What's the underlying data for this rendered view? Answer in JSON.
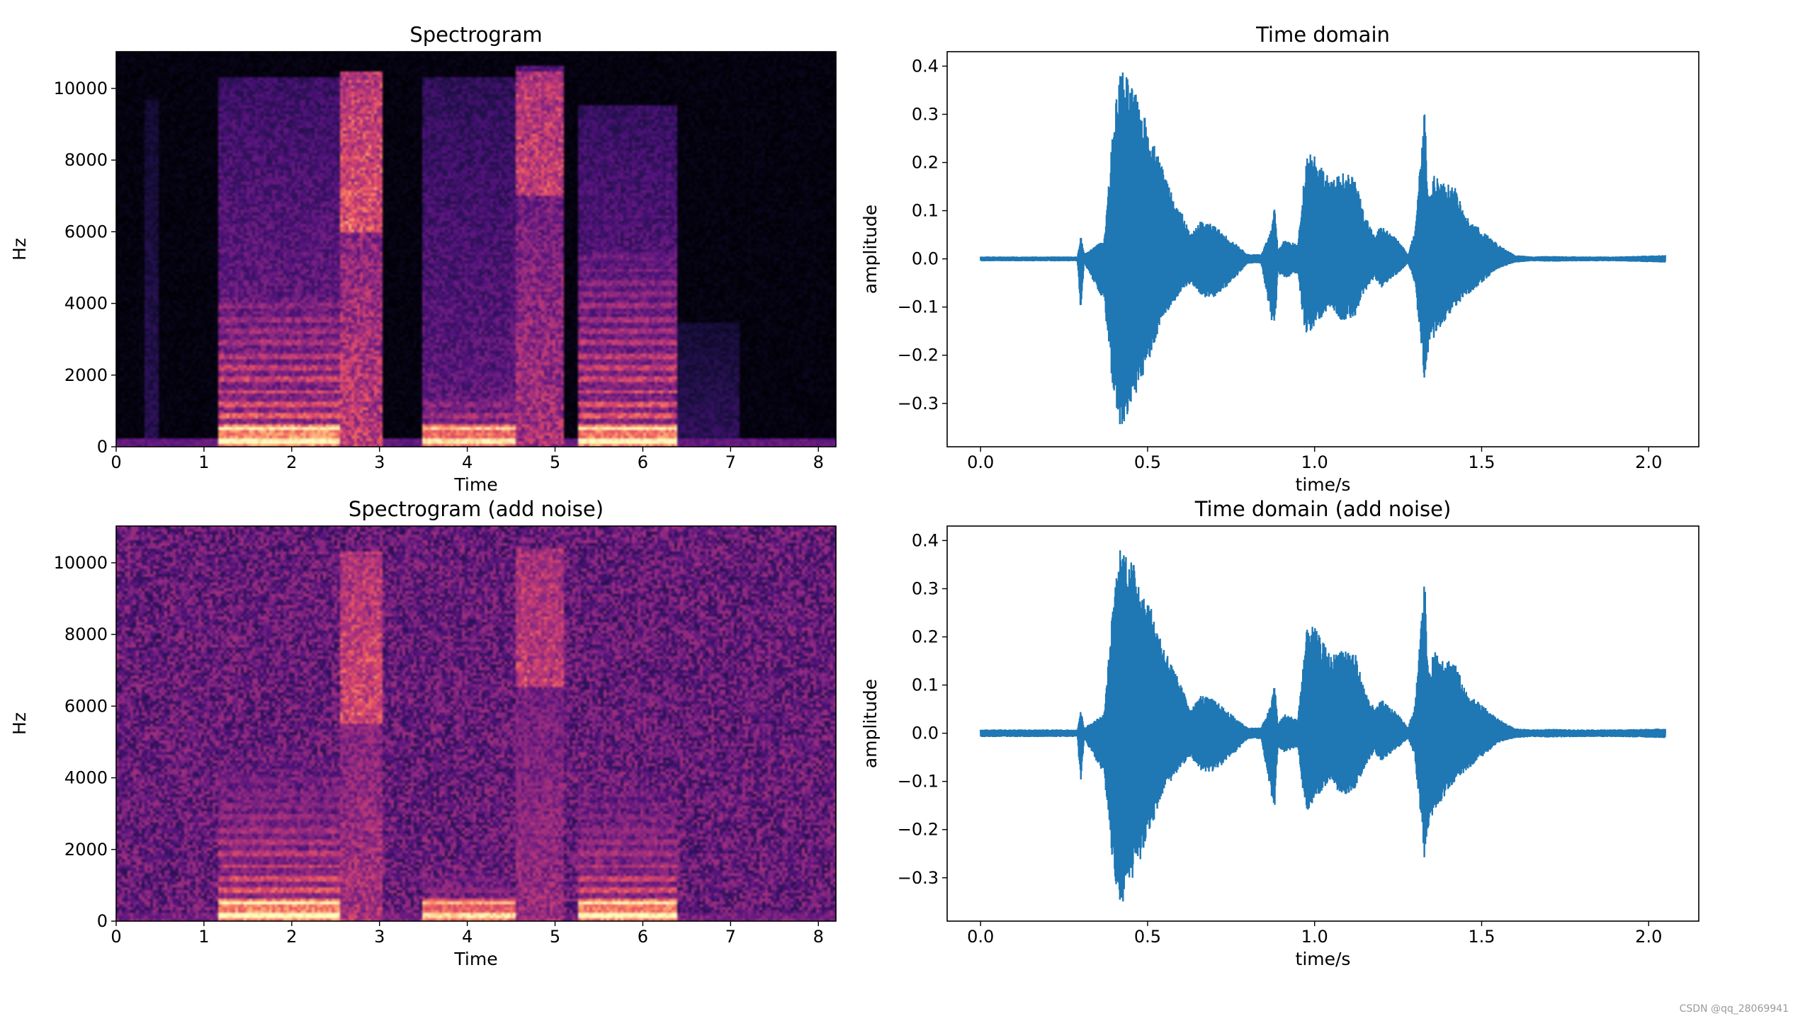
{
  "watermark": "CSDN @qq_28069941",
  "chart_data": [
    {
      "type": "heatmap",
      "title": "Spectrogram",
      "xlabel": "Time",
      "ylabel": "Hz",
      "xlim": [
        0,
        8.2
      ],
      "ylim": [
        0,
        11025
      ],
      "xticks": [
        0,
        1,
        2,
        3,
        4,
        5,
        6,
        7,
        8
      ],
      "yticks": [
        0,
        2000,
        4000,
        6000,
        8000,
        10000
      ],
      "colormap": "magma",
      "noise_floor": 0.04,
      "segments": [
        {
          "t0": 0.33,
          "t1": 0.5,
          "f_max": 9700,
          "level": 0.18,
          "harmonics": 0
        },
        {
          "t0": 1.15,
          "t1": 2.55,
          "f_max": 10300,
          "level": 0.42,
          "harmonics": 1,
          "formant_max": 4200
        },
        {
          "t0": 2.55,
          "t1": 3.05,
          "f_max": 10500,
          "level": 0.62,
          "harmonics": 0,
          "hot_band": [
            6000,
            10500
          ]
        },
        {
          "t0": 3.5,
          "t1": 4.55,
          "f_max": 10300,
          "level": 0.36,
          "harmonics": 1,
          "formant_max": 1300
        },
        {
          "t0": 4.55,
          "t1": 5.1,
          "f_max": 10600,
          "level": 0.55,
          "harmonics": 0,
          "hot_band": [
            7000,
            10500
          ]
        },
        {
          "t0": 5.25,
          "t1": 6.4,
          "f_max": 9500,
          "level": 0.4,
          "harmonics": 1,
          "formant_max": 5400
        },
        {
          "t0": 6.4,
          "t1": 7.1,
          "f_max": 3500,
          "level": 0.2,
          "harmonics": 0
        }
      ]
    },
    {
      "type": "line",
      "title": "Time domain",
      "xlabel": "time/s",
      "ylabel": "amplitude",
      "xlim": [
        -0.1,
        2.15
      ],
      "ylim": [
        -0.39,
        0.43
      ],
      "xticks": [
        0.0,
        0.5,
        1.0,
        1.5,
        2.0
      ],
      "yticks": [
        -0.3,
        -0.2,
        -0.1,
        0.0,
        0.1,
        0.2,
        0.3,
        0.4
      ],
      "xtick_labels": [
        "0.0",
        "0.5",
        "1.0",
        "1.5",
        "2.0"
      ],
      "ytick_labels": [
        "−0.3",
        "−0.2",
        "−0.1",
        "0.0",
        "0.1",
        "0.2",
        "0.3",
        "0.4"
      ],
      "color": "#1f77b4",
      "envelope": {
        "x": [
          0.0,
          0.29,
          0.3,
          0.31,
          0.37,
          0.4,
          0.42,
          0.46,
          0.5,
          0.55,
          0.6,
          0.63,
          0.66,
          0.7,
          0.75,
          0.8,
          0.84,
          0.87,
          0.88,
          0.89,
          0.91,
          0.95,
          0.97,
          0.98,
          1.0,
          1.05,
          1.08,
          1.12,
          1.15,
          1.18,
          1.2,
          1.25,
          1.28,
          1.3,
          1.33,
          1.34,
          1.36,
          1.38,
          1.42,
          1.45,
          1.5,
          1.55,
          1.6,
          1.65,
          1.7,
          1.8,
          1.9,
          2.05
        ],
        "pos": [
          0.005,
          0.005,
          0.05,
          0.01,
          0.04,
          0.3,
          0.4,
          0.35,
          0.28,
          0.18,
          0.1,
          0.05,
          0.08,
          0.07,
          0.04,
          0.01,
          0.01,
          0.06,
          0.11,
          0.02,
          0.04,
          0.03,
          0.18,
          0.23,
          0.22,
          0.16,
          0.18,
          0.17,
          0.09,
          0.05,
          0.07,
          0.04,
          0.01,
          0.06,
          0.33,
          0.12,
          0.18,
          0.16,
          0.15,
          0.09,
          0.06,
          0.03,
          0.008,
          0.005,
          0.006,
          0.005,
          0.005,
          0.008
        ],
        "neg": [
          -0.005,
          -0.005,
          -0.11,
          -0.01,
          -0.09,
          -0.3,
          -0.36,
          -0.3,
          -0.22,
          -0.12,
          -0.07,
          -0.05,
          -0.08,
          -0.08,
          -0.05,
          -0.01,
          -0.01,
          -0.13,
          -0.16,
          -0.03,
          -0.04,
          -0.03,
          -0.15,
          -0.16,
          -0.14,
          -0.1,
          -0.13,
          -0.12,
          -0.07,
          -0.04,
          -0.06,
          -0.03,
          -0.01,
          -0.05,
          -0.27,
          -0.2,
          -0.16,
          -0.14,
          -0.1,
          -0.08,
          -0.05,
          -0.02,
          -0.008,
          -0.005,
          -0.006,
          -0.005,
          -0.005,
          -0.008
        ]
      }
    },
    {
      "type": "heatmap",
      "title": "Spectrogram (add noise)",
      "xlabel": "Time",
      "ylabel": "Hz",
      "xlim": [
        0,
        8.2
      ],
      "ylim": [
        0,
        11025
      ],
      "xticks": [
        0,
        1,
        2,
        3,
        4,
        5,
        6,
        7,
        8
      ],
      "yticks": [
        0,
        2000,
        4000,
        6000,
        8000,
        10000
      ],
      "colormap": "magma",
      "noise_floor": 0.36,
      "segments": [
        {
          "t0": 1.15,
          "t1": 2.55,
          "f_max": 4500,
          "level": 0.42,
          "harmonics": 1,
          "formant_max": 4200
        },
        {
          "t0": 2.55,
          "t1": 3.05,
          "f_max": 10300,
          "level": 0.55,
          "harmonics": 0,
          "hot_band": [
            5500,
            10300
          ]
        },
        {
          "t0": 3.5,
          "t1": 4.55,
          "f_max": 1300,
          "level": 0.36,
          "harmonics": 1,
          "formant_max": 1300
        },
        {
          "t0": 4.55,
          "t1": 5.1,
          "f_max": 10400,
          "level": 0.5,
          "harmonics": 0,
          "hot_band": [
            6500,
            10400
          ]
        },
        {
          "t0": 5.25,
          "t1": 6.4,
          "f_max": 3800,
          "level": 0.4,
          "harmonics": 1,
          "formant_max": 3600
        }
      ]
    },
    {
      "type": "line",
      "title": "Time domain (add noise)",
      "xlabel": "time/s",
      "ylabel": "amplitude",
      "xlim": [
        -0.1,
        2.15
      ],
      "ylim": [
        -0.39,
        0.43
      ],
      "xticks": [
        0.0,
        0.5,
        1.0,
        1.5,
        2.0
      ],
      "yticks": [
        -0.3,
        -0.2,
        -0.1,
        0.0,
        0.1,
        0.2,
        0.3,
        0.4
      ],
      "xtick_labels": [
        "0.0",
        "0.5",
        "1.0",
        "1.5",
        "2.0"
      ],
      "ytick_labels": [
        "−0.3",
        "−0.2",
        "−0.1",
        "0.0",
        "0.1",
        "0.2",
        "0.3",
        "0.4"
      ],
      "color": "#1f77b4",
      "envelope": {
        "x": [
          0.0,
          0.29,
          0.3,
          0.31,
          0.37,
          0.4,
          0.42,
          0.46,
          0.5,
          0.55,
          0.6,
          0.63,
          0.66,
          0.7,
          0.75,
          0.8,
          0.84,
          0.87,
          0.88,
          0.89,
          0.91,
          0.95,
          0.97,
          0.98,
          1.0,
          1.05,
          1.08,
          1.12,
          1.15,
          1.18,
          1.2,
          1.25,
          1.28,
          1.3,
          1.33,
          1.34,
          1.36,
          1.38,
          1.42,
          1.45,
          1.5,
          1.55,
          1.6,
          1.65,
          1.7,
          1.8,
          1.9,
          2.05
        ],
        "pos": [
          0.008,
          0.008,
          0.05,
          0.012,
          0.04,
          0.3,
          0.4,
          0.35,
          0.28,
          0.18,
          0.1,
          0.05,
          0.08,
          0.07,
          0.04,
          0.012,
          0.012,
          0.06,
          0.11,
          0.02,
          0.04,
          0.03,
          0.18,
          0.23,
          0.22,
          0.16,
          0.18,
          0.17,
          0.09,
          0.05,
          0.07,
          0.04,
          0.012,
          0.06,
          0.33,
          0.12,
          0.18,
          0.16,
          0.15,
          0.09,
          0.06,
          0.03,
          0.01,
          0.008,
          0.009,
          0.008,
          0.008,
          0.01
        ],
        "neg": [
          -0.008,
          -0.008,
          -0.11,
          -0.012,
          -0.09,
          -0.3,
          -0.36,
          -0.3,
          -0.22,
          -0.12,
          -0.07,
          -0.05,
          -0.08,
          -0.08,
          -0.05,
          -0.012,
          -0.012,
          -0.13,
          -0.16,
          -0.03,
          -0.04,
          -0.03,
          -0.15,
          -0.16,
          -0.14,
          -0.1,
          -0.13,
          -0.12,
          -0.07,
          -0.04,
          -0.06,
          -0.03,
          -0.012,
          -0.05,
          -0.27,
          -0.2,
          -0.16,
          -0.14,
          -0.1,
          -0.08,
          -0.05,
          -0.02,
          -0.01,
          -0.008,
          -0.009,
          -0.008,
          -0.008,
          -0.01
        ]
      }
    }
  ]
}
